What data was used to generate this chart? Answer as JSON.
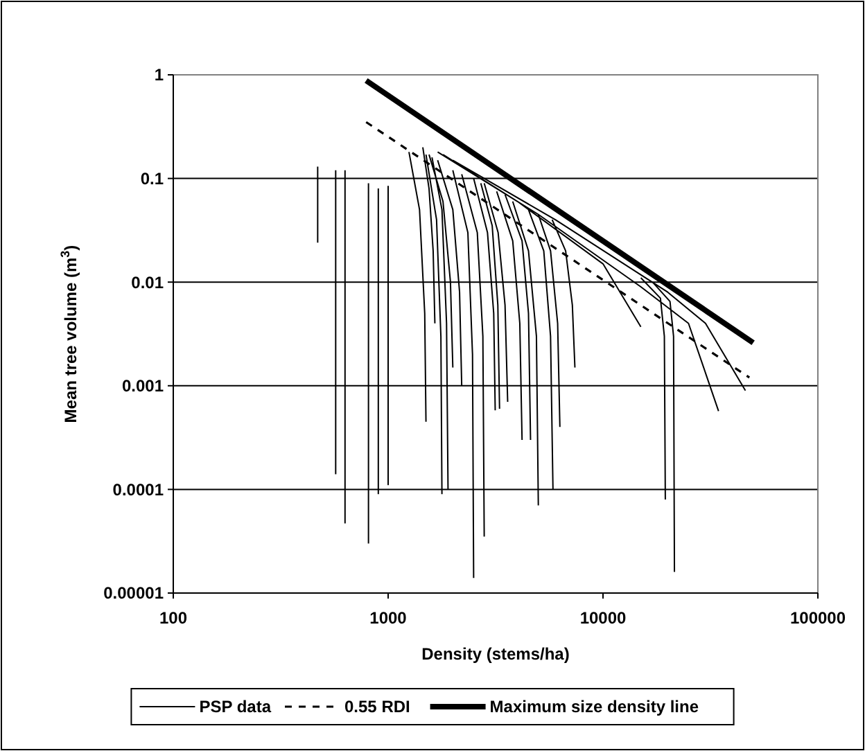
{
  "chart_data": {
    "type": "line",
    "xlabel": "Density (stems/ha)",
    "ylabel": "Mean tree volume (m$^{3}$)",
    "log": "xy",
    "grid": "y",
    "legend": "bottom",
    "xlim": [
      100,
      100000
    ],
    "xticks": [
      100,
      1000,
      10000,
      100000
    ],
    "ylim": [
      1e-05,
      1
    ],
    "yticks": [
      {
        "value": 1e-05,
        "label": "0.00001"
      },
      0.0001,
      0.001,
      0.01,
      0.1,
      1
    ],
    "series": [
      {
        "name": "PSP data",
        "color": "#000000",
        "line_style": "solid",
        "x": [
          470,
          470,
          null,
          570,
          570,
          null,
          630,
          630,
          null,
          810,
          810,
          null,
          900,
          900,
          null,
          1000,
          1000,
          null,
          1500,
          1480,
          1400,
          1250,
          null,
          1780,
          1760,
          1680,
          1500,
          null,
          1900,
          1870,
          1780,
          1600,
          null,
          2500,
          2470,
          2350,
          2000,
          null,
          2800,
          2760,
          2600,
          2200,
          null,
          3150,
          3100,
          2900,
          2500,
          null,
          3300,
          3240,
          3050,
          2700,
          null,
          4200,
          4100,
          3800,
          3200,
          null,
          4600,
          4500,
          4200,
          3500,
          null,
          5000,
          4900,
          4500,
          3800,
          null,
          5850,
          5700,
          5300,
          4500,
          null,
          6300,
          6150,
          5700,
          5000,
          null,
          7400,
          7200,
          6700,
          5800,
          null,
          19500,
          19300,
          18500,
          15000,
          null,
          21500,
          21300,
          20500,
          17000,
          null,
          2000,
          1950,
          1800,
          1550,
          null,
          2200,
          2150,
          2000,
          1700,
          null,
          3600,
          3500,
          3250,
          2800,
          null,
          1650,
          1620,
          1550,
          1450,
          null,
          1800,
          4000,
          10000,
          15000,
          null,
          1700,
          5000,
          15000,
          25000,
          34500,
          null,
          2000,
          6000,
          20000,
          30000,
          46000
        ],
        "values": [
          0.13,
          0.024,
          null,
          0.12,
          0.00014,
          null,
          0.12,
          4.7e-05,
          null,
          0.09,
          3e-05,
          null,
          0.08,
          9e-05,
          null,
          0.085,
          0.00011,
          null,
          0.00045,
          0.005,
          0.05,
          0.18,
          null,
          9e-05,
          0.003,
          0.04,
          0.17,
          null,
          0.0001,
          0.004,
          0.05,
          0.16,
          null,
          1.4e-05,
          0.002,
          0.03,
          0.12,
          null,
          3.5e-05,
          0.003,
          0.03,
          0.11,
          null,
          0.00058,
          0.005,
          0.03,
          0.1,
          null,
          0.0006,
          0.006,
          0.035,
          0.09,
          null,
          0.0003,
          0.004,
          0.025,
          0.075,
          null,
          0.0003,
          0.005,
          0.025,
          0.07,
          null,
          7e-05,
          0.003,
          0.02,
          0.06,
          null,
          0.0001,
          0.003,
          0.02,
          0.05,
          null,
          0.0004,
          0.004,
          0.02,
          0.045,
          null,
          0.0015,
          0.006,
          0.02,
          0.04,
          null,
          8e-05,
          0.003,
          0.007,
          0.011,
          null,
          1.6e-05,
          0.003,
          0.0065,
          0.01,
          null,
          0.0015,
          0.01,
          0.06,
          0.17,
          null,
          0.001,
          0.008,
          0.05,
          0.15,
          null,
          0.0007,
          0.006,
          0.03,
          0.09,
          null,
          0.004,
          0.02,
          0.08,
          0.2,
          null,
          0.17,
          0.06,
          0.015,
          0.0037,
          null,
          0.18,
          0.045,
          0.009,
          0.004,
          0.00057,
          null,
          0.15,
          0.04,
          0.008,
          0.004,
          0.0009
        ]
      },
      {
        "name": "0.55 RDI",
        "color": "#000000",
        "line_style": "dashed",
        "x": [
          790,
          48000
        ],
        "values": [
          0.35,
          0.0012
        ]
      },
      {
        "name": "Maximum size density line",
        "color": "#000000",
        "line_style": "solid",
        "x": [
          790,
          50000
        ],
        "values": [
          0.88,
          0.0026
        ]
      }
    ]
  }
}
